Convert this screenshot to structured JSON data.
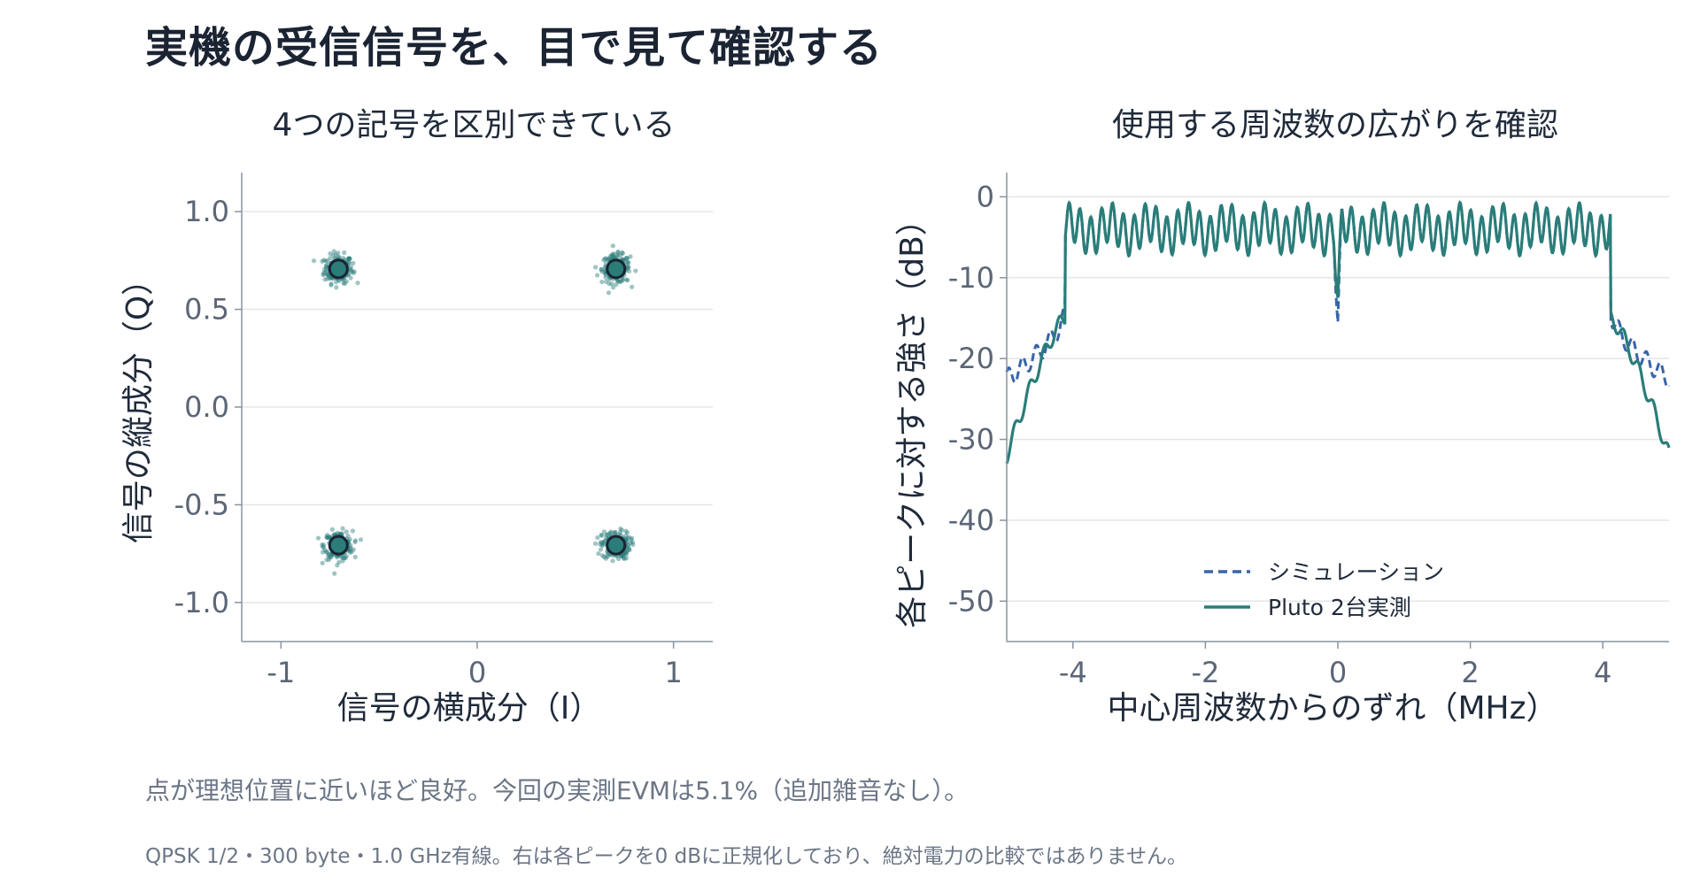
{
  "page": {
    "title": "実機の受信信号を、目で見て確認する",
    "note_main": "点が理想位置に近いほど良好。今回の実測EVMは5.1%（追加雑音なし）。",
    "note_sub": "QPSK 1/2・300 byte・1.0 GHz有線。右は各ピークを0 dBに正規化しており、絶対電力の比較ではありません。"
  },
  "colors": {
    "teal": "#2a7d79",
    "blue": "#3864a8",
    "grid": "#e3e6ea",
    "axis": "#8a93a0",
    "tick": "#5b6677"
  },
  "chart_data": [
    {
      "type": "scatter",
      "title": "4つの記号を区別できている",
      "xlabel": "信号の横成分（I）",
      "ylabel": "信号の縦成分（Q）",
      "xlim": [
        -1.2,
        1.2
      ],
      "ylim": [
        -1.2,
        1.2
      ],
      "xticks": [
        -1,
        0,
        1
      ],
      "yticks": [
        1.0,
        0.5,
        0.0,
        -0.5,
        -1.0
      ],
      "ytick_labels": [
        "1.0",
        "0.5",
        "0.0",
        "-0.5",
        "-1.0"
      ],
      "grid": "horizontal",
      "ideal_points": [
        [
          -0.707,
          0.707
        ],
        [
          0.707,
          0.707
        ],
        [
          -0.707,
          -0.707
        ],
        [
          0.707,
          -0.707
        ]
      ],
      "received_spread": 0.036,
      "received_points_per_symbol": 220
    },
    {
      "type": "line",
      "title": "使用する周波数の広がりを確認",
      "xlabel": "中心周波数からのずれ（MHz）",
      "ylabel": "各ピークに対する強さ（dB）",
      "xlim": [
        -5,
        5
      ],
      "ylim": [
        -55,
        3
      ],
      "xticks": [
        -4,
        -2,
        0,
        2,
        4
      ],
      "yticks": [
        0,
        -10,
        -20,
        -30,
        -40,
        -50
      ],
      "grid": "horizontal",
      "legend_position": "bottom-center",
      "series": [
        {
          "name": "シミュレーション",
          "style": "dashed",
          "points": [
            [
              -5,
              -22
            ],
            [
              -4.6,
              -22
            ],
            [
              -4.4,
              -18
            ],
            [
              -4.2,
              -14
            ],
            [
              -4.12,
              -3.5
            ],
            [
              -2,
              -4
            ],
            [
              0,
              -4
            ],
            [
              0.05,
              -16
            ],
            [
              2,
              -4
            ],
            [
              4.12,
              -3.5
            ],
            [
              4.2,
              -14
            ],
            [
              4.4,
              -19
            ],
            [
              4.6,
              -21
            ],
            [
              5,
              -22.5
            ]
          ]
        },
        {
          "name": "Pluto 2台実測",
          "style": "solid",
          "points": [
            [
              -5,
              -32
            ],
            [
              -4.6,
              -25
            ],
            [
              -4.4,
              -19
            ],
            [
              -4.2,
              -15
            ],
            [
              -4.12,
              -3.5
            ],
            [
              -2,
              -4
            ],
            [
              0,
              -4
            ],
            [
              0.05,
              -13
            ],
            [
              2,
              -4
            ],
            [
              4.12,
              -3.5
            ],
            [
              4.2,
              -15
            ],
            [
              4.4,
              -21
            ],
            [
              4.6,
              -24
            ],
            [
              5,
              -32
            ]
          ]
        }
      ]
    }
  ]
}
